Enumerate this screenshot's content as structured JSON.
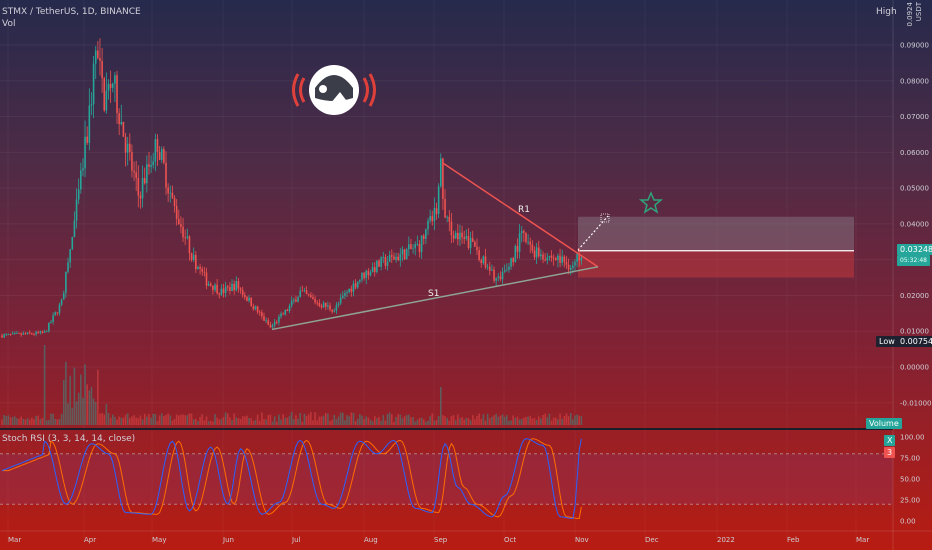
{
  "header": {
    "symbol": "STMX / TetherUS, 1D, BINANCE",
    "vol_label": "Vol",
    "high_label": "High",
    "high_value": "0.0924",
    "currency": "USDT"
  },
  "price_axis": {
    "ticks": [
      "0.09000",
      "0.08000",
      "0.07000",
      "0.06000",
      "0.05000",
      "0.04000",
      "0.03000",
      "0.02000",
      "0.01000",
      "0.00000",
      "-0.01000"
    ],
    "ticks_display": [
      "0.09000",
      "0.08000",
      "0.07000",
      "0.06000",
      "0.05000",
      "0.04000",
      "0.03000",
      "0.02000",
      "0.01000",
      "0.00000",
      "-0.01000"
    ],
    "last_price": "0.03248",
    "countdown": "05:32:48",
    "low_label": "Low",
    "low_value": "0.00754",
    "volume_label": "Volume"
  },
  "stoch": {
    "title": "Stoch RSI (3, 3, 14, 14, close)",
    "k_value": "X",
    "d_value": "3",
    "ticks": [
      "100.00",
      "75.00",
      "50.00",
      "25.00",
      "0.00"
    ]
  },
  "time_axis": [
    "Mar",
    "Apr",
    "May",
    "Jun",
    "Jul",
    "Aug",
    "Sep",
    "Oct",
    "Nov",
    "Dec",
    "2022",
    "Feb",
    "Mar"
  ],
  "drawings": {
    "resistance_label": "R1",
    "support_label": "S1"
  },
  "chart_data": {
    "type": "candlestick",
    "ylim": [
      -0.012,
      0.096
    ],
    "stoch_ylim": [
      -8,
      106
    ],
    "overbought": 80,
    "oversold": 20,
    "close_by_month": {
      "Mar": 0.009,
      "Apr": 0.085,
      "May": 0.055,
      "Jun": 0.022,
      "Jul": 0.017,
      "Aug": 0.029,
      "Sep": 0.035,
      "Oct": 0.03,
      "Nov": 0.03248
    },
    "pattern": "descending resistance R1 from ~0.057 (Sep) to ~0.031 (Nov), ascending support S1 from ~0.0105 (Jun) to ~0.028 (Nov)",
    "target_box": [
      0.025,
      0.042
    ],
    "colors": {
      "up": "#26a69a",
      "down": "#ef5350",
      "resistance": "#ef5350",
      "support": "#8ea494",
      "k": "#2962ff",
      "d": "#ff6d00"
    }
  }
}
